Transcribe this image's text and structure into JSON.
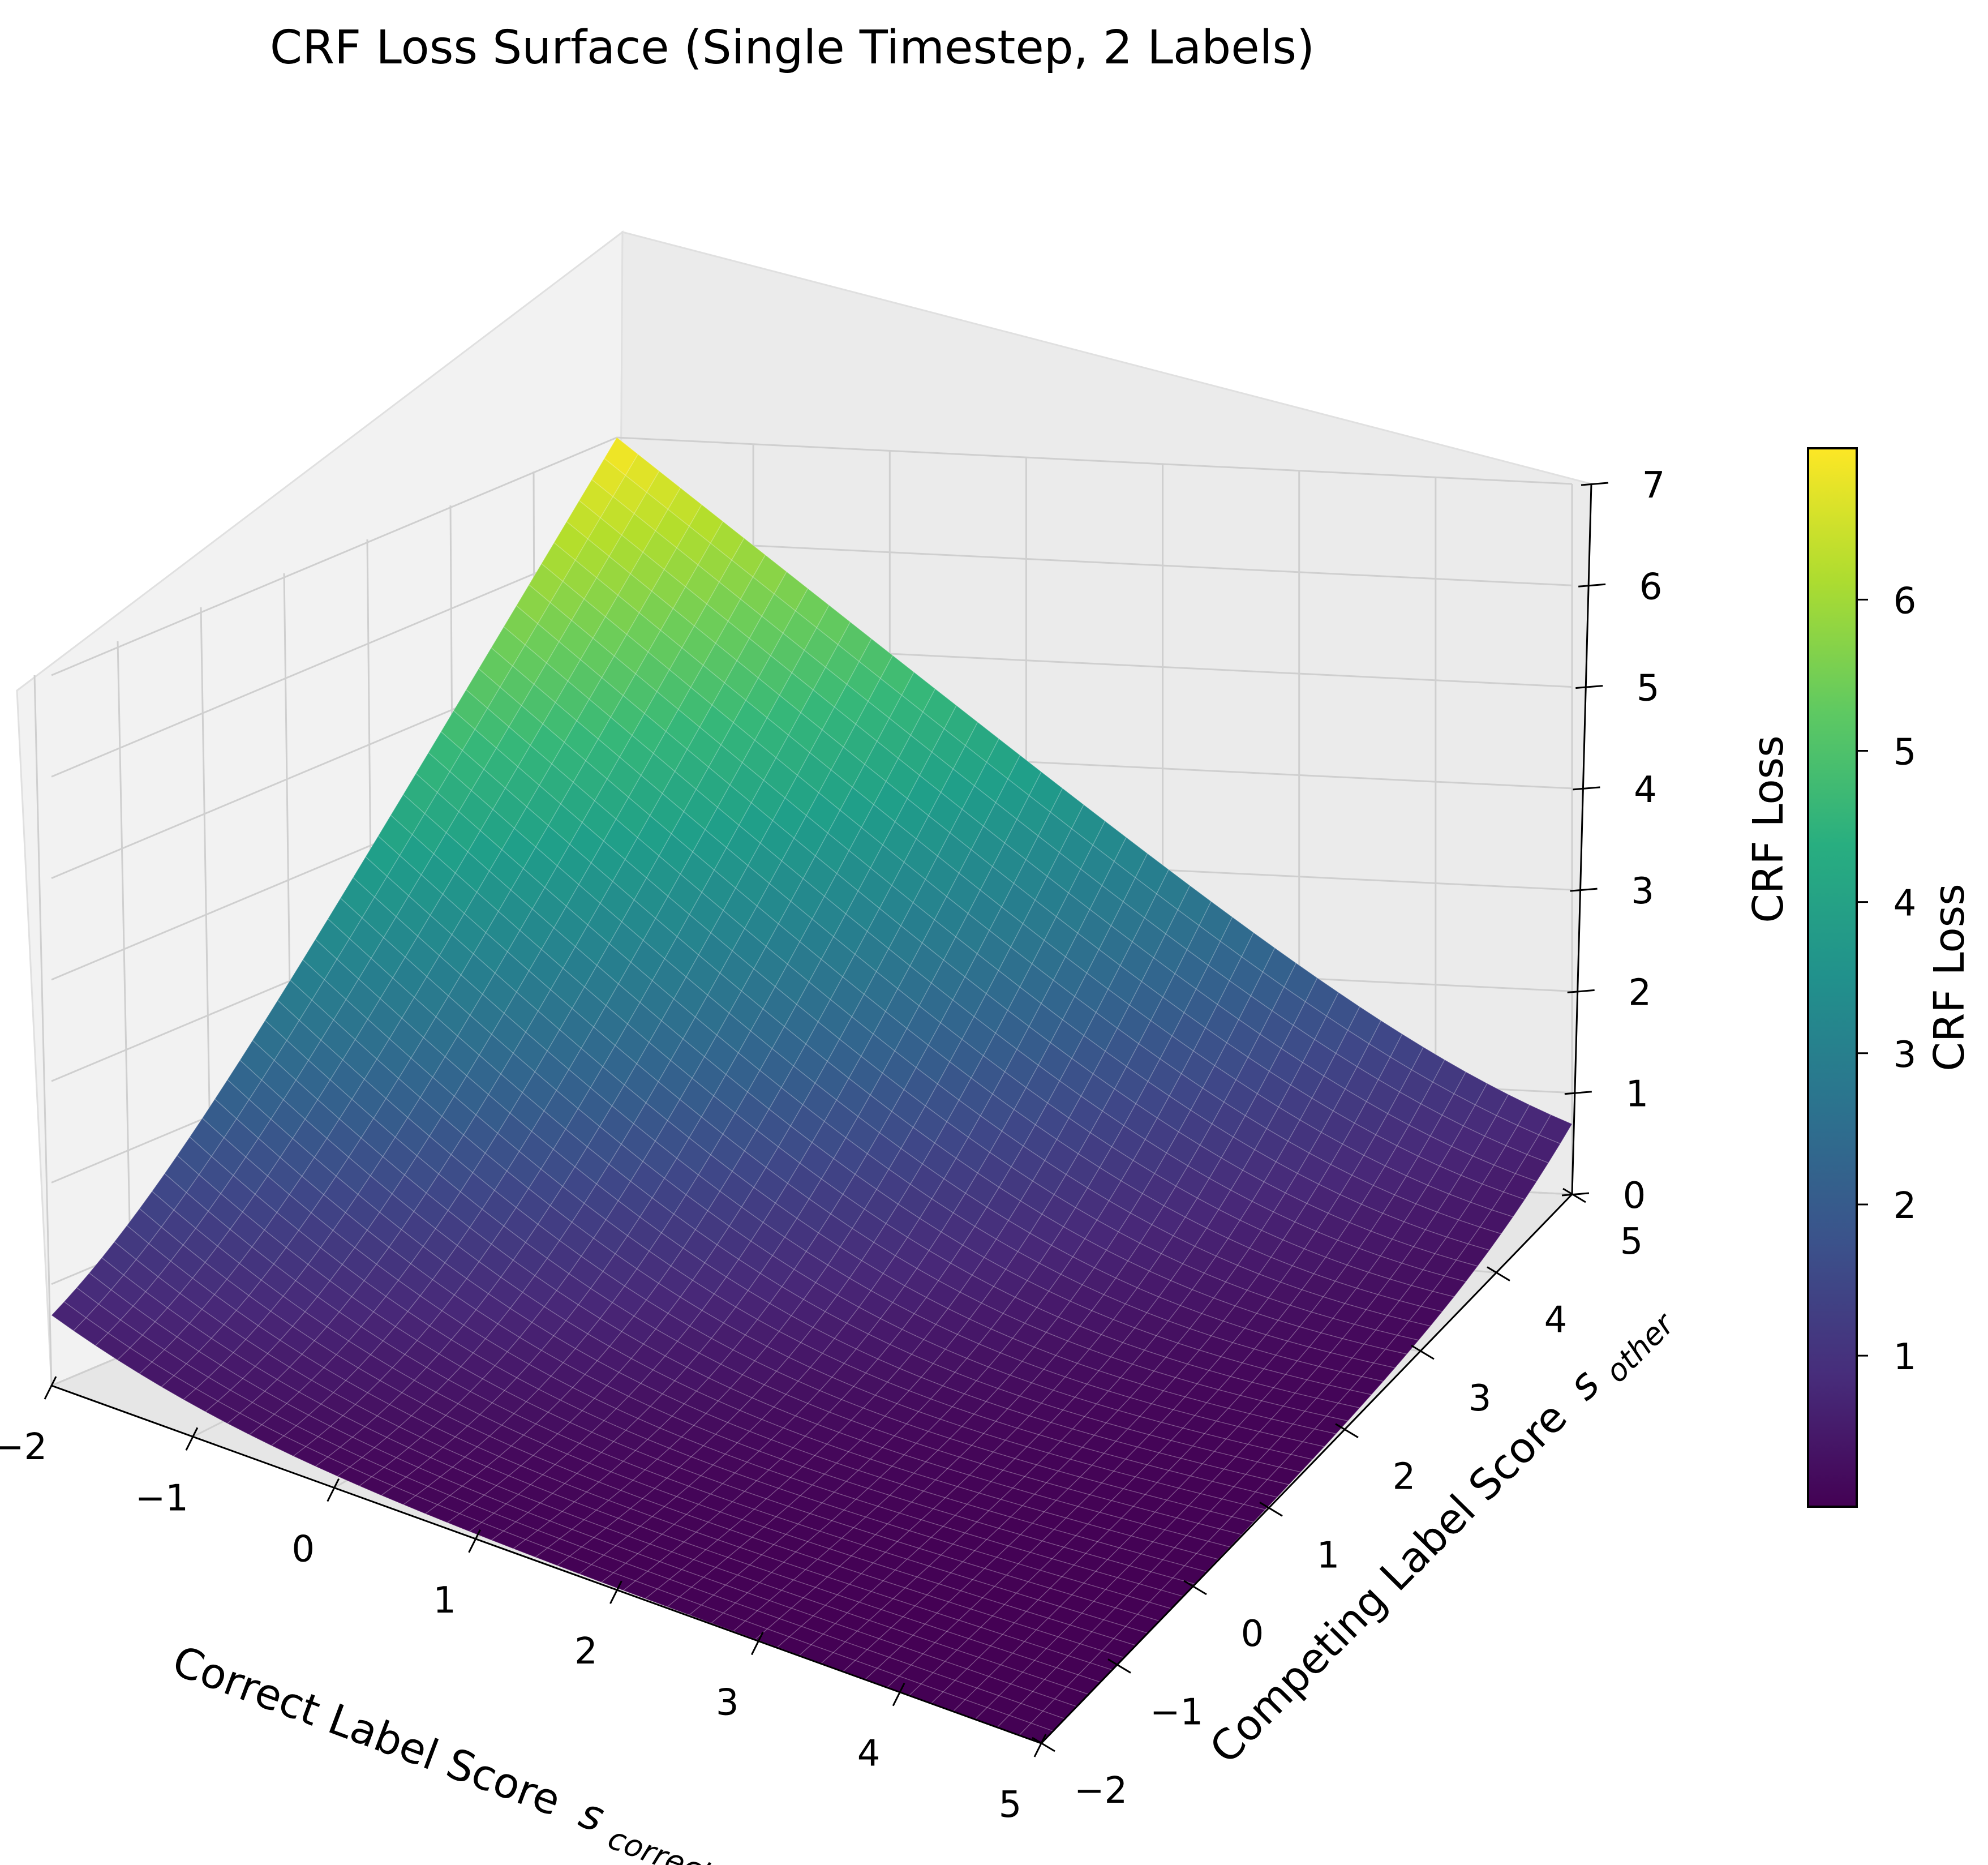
{
  "chart_data": {
    "type": "surface3d",
    "title": "CRF Loss Surface (Single Timestep, 2 Labels)",
    "x_axis": {
      "label": "Correct Label Score",
      "symbol": "s",
      "subscript": "correct",
      "ticks": [
        -2,
        -1,
        0,
        1,
        2,
        3,
        4,
        5
      ],
      "tick_labels": [
        "−2",
        "−1",
        "0",
        "1",
        "2",
        "3",
        "4",
        "5"
      ],
      "range": [
        -2,
        5
      ]
    },
    "y_axis": {
      "label": "Competing Label Score",
      "symbol": "s",
      "subscript": "other",
      "ticks": [
        -2,
        -1,
        0,
        1,
        2,
        3,
        4,
        5
      ],
      "tick_labels": [
        "−2",
        "−1",
        "0",
        "1",
        "2",
        "3",
        "4",
        "5"
      ],
      "range": [
        -2,
        5
      ]
    },
    "z_axis": {
      "label": "CRF Loss",
      "ticks": [
        0,
        1,
        2,
        3,
        4,
        5,
        6,
        7
      ],
      "tick_labels": [
        "0",
        "1",
        "2",
        "3",
        "4",
        "5",
        "6",
        "7"
      ],
      "range": [
        0,
        7
      ]
    },
    "function": "log(exp(s_correct) + exp(s_other)) - s_correct",
    "grid": true,
    "colormap": "viridis",
    "corner_values": [
      {
        "x": -2,
        "y": -2,
        "z": 0.69
      },
      {
        "x": 5,
        "y": -2,
        "z": 0.0009
      },
      {
        "x": -2,
        "y": 5,
        "z": 7.0009
      },
      {
        "x": 5,
        "y": 5,
        "z": 0.69
      }
    ],
    "colorbar": {
      "label": "CRF Loss",
      "ticks": [
        1,
        2,
        3,
        4,
        5,
        6
      ],
      "tick_labels": [
        "1",
        "2",
        "3",
        "4",
        "5",
        "6"
      ],
      "range": [
        0.0009,
        7.0009
      ]
    }
  }
}
